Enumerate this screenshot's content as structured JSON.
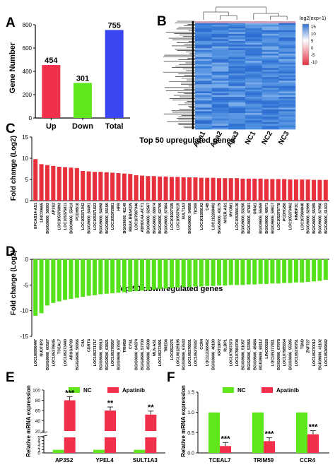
{
  "panels": {
    "A": {
      "letter": "A",
      "chart_data": {
        "type": "bar",
        "categories": [
          "Up",
          "Down",
          "Total"
        ],
        "values": [
          454,
          301,
          755
        ],
        "value_labels": [
          "454",
          "301",
          "755"
        ],
        "colors": [
          "#f0304a",
          "#5fe61d",
          "#3a47f0"
        ],
        "ylabel": "Gene Number",
        "ylim": [
          0,
          800
        ],
        "yticks": [
          0,
          200,
          400,
          600,
          800
        ],
        "grid": false
      }
    },
    "B": {
      "letter": "B",
      "chart_data": {
        "type": "heatmap",
        "columns": [
          "Apa1",
          "Apa2",
          "Apa3",
          "NC1",
          "NC2",
          "NC3"
        ],
        "legend_title": "log2(exp+1)",
        "legend_ticks": [
          "15",
          "10",
          "5",
          "0",
          "-5",
          "-10"
        ],
        "legend_range": [
          -10,
          15
        ],
        "colors": {
          "high": "#2f6fd1",
          "mid": "#ffffff",
          "low": "#e3303f"
        },
        "legend_placement": "right"
      }
    },
    "C": {
      "letter": "C",
      "chart_data": {
        "type": "bar",
        "title": "Top 50 upregulated genes",
        "ylabel": "Fold change (Log2)",
        "ylim": [
          0,
          15
        ],
        "yticks": [
          0,
          5,
          10,
          15
        ],
        "color": "#e8303c",
        "categories": [
          "EFCAB14-AS1",
          "LINC00665",
          "BGIG9606_58393",
          "AP3S2",
          "LOC105376893",
          "LOC105375811",
          "BGIG9606_55413",
          "PCDHB16",
          "LOC105371942",
          "BGIG9606_64491",
          "LOC105371823",
          "BGIG9606_54098",
          "BGIG9606_55150",
          "LOC105372881",
          "HPR",
          "BGIG9606_41149",
          "RBAK-RBAKDN",
          "LOC107987346",
          "ABHD14A-ACY1",
          "BGIG9606_62567",
          "BGIG9606_68074",
          "BGIG9606_62709",
          "BGIG9606_67864",
          "LOC101927335",
          "LOC105379215",
          "SULT1A3",
          "BGIG9606_54858",
          "TICRR",
          "LOC101928102",
          "C4B",
          "LOC112268402",
          "BGIG9606_43179",
          "NICER-AS1",
          "MYOM1",
          "LOC105380136",
          "BGIG9606_53250",
          "BGIG9606_47681",
          "ORAI1",
          "BGIG9606_55459",
          "BGIG9606_49571",
          "BGIG9606_59617",
          "LOC105376778",
          "PCDHGB6",
          "LOC105373462",
          "RIMBP3C",
          "LOC107984840",
          "BGIG9606_62999",
          "BGIG9606_55395",
          "BGIG9606_67950",
          "BGIG9606_61022"
        ],
        "values": [
          9.8,
          8.6,
          8.4,
          8.2,
          8.0,
          7.9,
          7.8,
          7.7,
          7.0,
          6.9,
          6.8,
          6.8,
          6.7,
          6.6,
          6.5,
          6.4,
          6.3,
          6.0,
          5.9,
          5.8,
          5.8,
          5.7,
          5.7,
          5.6,
          5.6,
          5.5,
          5.5,
          5.5,
          5.4,
          5.4,
          5.4,
          5.3,
          5.3,
          5.3,
          5.3,
          5.2,
          5.2,
          5.2,
          5.2,
          5.1,
          5.1,
          5.1,
          5.1,
          5.0,
          5.0,
          5.0,
          5.0,
          4.9,
          4.9,
          4.9
        ]
      }
    },
    "D": {
      "letter": "D",
      "chart_data": {
        "type": "bar",
        "title": "Top 50 downregulated genes",
        "ylabel": "Fold change (Log2)",
        "ylim": [
          -15,
          0
        ],
        "yticks": [
          0,
          -5,
          -10,
          -15
        ],
        "color": "#56e21a",
        "categories": [
          "LOC100996447",
          "NUDT4P2",
          "BGIG9606_60527",
          "LOC105379645",
          "TCEAL7",
          "LOC105373440",
          "ARHGAP33",
          "BGIG9606_56956",
          "C4A",
          "CDRT4",
          "LOC105371717",
          "BGIG9606_55913",
          "BGIG9606_63821",
          "LOC105376957",
          "BGIG9606_67847",
          "TRIM59",
          "CYS1",
          "BGIG9606_64374",
          "BGIG9606_57700",
          "BGIG9606_45308",
          "MLN-AS1",
          "LOC105373491",
          "TMED6",
          "LOC652276",
          "LOC100129195",
          "BGIG9606_67643",
          "LOC105376831",
          "LOC105379347",
          "CCR4",
          "LOC112268452",
          "BGIG9606_46180",
          "KRT19P2",
          "RLBP1",
          "LOC107987373",
          "LOC107984708",
          "BGIG9606_51057",
          "BGIG9606_53355",
          "BGIG9606_49484",
          "BGIG9606_68112",
          "LINC00528",
          "LOC105377811",
          "BGIG9606_67978",
          "LOC107985554",
          "BGIG9606_55395",
          "LOC105378751",
          "TBN3",
          "ZNF727",
          "LOC105370012",
          "BGIG9606_41102",
          "LOC105369842"
        ],
        "values": [
          -11.0,
          -10.5,
          -9.0,
          -8.5,
          -8.2,
          -7.9,
          -7.7,
          -7.5,
          -7.3,
          -7.1,
          -7.0,
          -6.8,
          -6.7,
          -6.6,
          -6.5,
          -6.4,
          -6.3,
          -6.2,
          -6.1,
          -6.0,
          -5.9,
          -5.8,
          -5.7,
          -5.6,
          -5.5,
          -5.4,
          -5.4,
          -5.3,
          -5.3,
          -5.2,
          -5.2,
          -5.1,
          -5.1,
          -5.0,
          -5.0,
          -5.0,
          -4.9,
          -4.9,
          -4.8,
          -4.8,
          -4.7,
          -4.7,
          -4.6,
          -4.6,
          -4.5,
          -4.5,
          -4.4,
          -4.3,
          -4.2,
          -4.0
        ]
      }
    },
    "E": {
      "letter": "E",
      "chart_data": {
        "type": "bar",
        "ylabel": "Relative mRNA expression",
        "categories": [
          "AP3S2",
          "YPEL4",
          "SULT1A3"
        ],
        "series": [
          {
            "name": "NC",
            "values": [
              1,
              1,
              1
            ],
            "color": "#5fe61d"
          },
          {
            "name": "Apatinib",
            "values": [
              80,
              60,
              52
            ],
            "color": "#f0304a"
          }
        ],
        "significance": [
          "***",
          "**",
          "**"
        ],
        "axis_break": true,
        "yticks_low": [
          "0",
          "1",
          "2",
          "3",
          "4",
          "5"
        ],
        "yticks_high": [
          "20",
          "40",
          "60",
          "80",
          "100"
        ],
        "legend_placement": "top"
      }
    },
    "F": {
      "letter": "F",
      "chart_data": {
        "type": "bar",
        "ylabel": "Relative mRNA expression",
        "ylim": [
          0,
          1.5
        ],
        "yticks": [
          "0.0",
          "0.5",
          "1.0",
          "1.5"
        ],
        "categories": [
          "TCEAL7",
          "TRIM59",
          "CCR4"
        ],
        "series": [
          {
            "name": "NC",
            "values": [
              1.0,
              1.0,
              1.0
            ],
            "color": "#5fe61d"
          },
          {
            "name": "Apatinib",
            "values": [
              0.17,
              0.29,
              0.46
            ],
            "color": "#f0304a"
          }
        ],
        "significance": [
          "***",
          "***",
          "***"
        ],
        "legend_placement": "top"
      }
    }
  }
}
